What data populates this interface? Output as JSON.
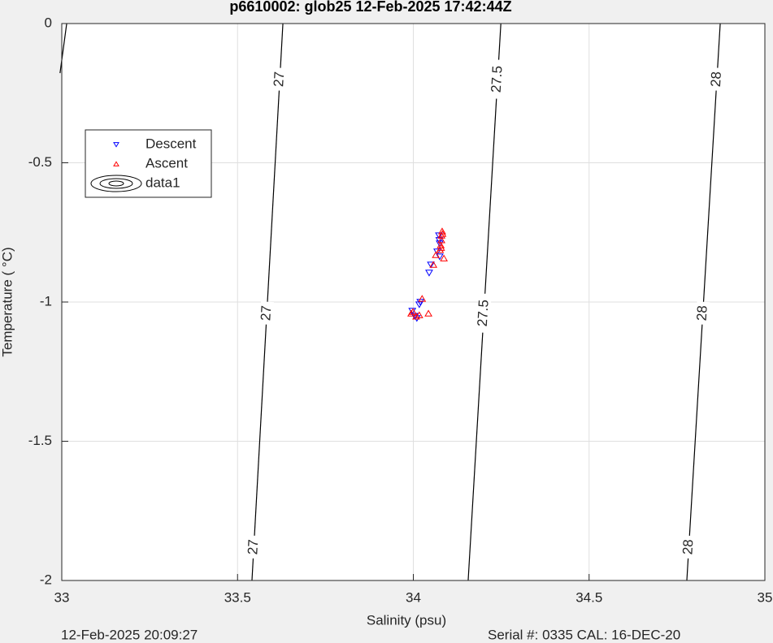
{
  "chart_data": {
    "type": "scatter",
    "title": "p6610002: glob25 12-Feb-2025 17:42:44Z",
    "x_label": "Salinity (psu)",
    "y_label": "Temperature (   °C)",
    "footer_left": "12-Feb-2025 20:09:27",
    "footer_right": "Serial #: 0335  CAL: 16-DEC-20",
    "xlim": [
      33,
      35
    ],
    "ylim": [
      -2,
      0
    ],
    "xticks": [
      33,
      33.5,
      34,
      34.5,
      35
    ],
    "yticks": [
      -2,
      -1.5,
      -1,
      -0.5,
      0
    ],
    "grid": true,
    "legend": "upper left",
    "series": [
      {
        "name": "Descent",
        "color": "#0000ff",
        "marker": "triangle-down",
        "x": [
          34.075,
          34.073,
          34.068,
          34.075,
          34.05,
          34.045,
          34.02,
          34.017,
          33.997,
          34.004,
          34.01,
          34.074
        ],
        "y": [
          -0.79,
          -0.761,
          -0.819,
          -0.837,
          -0.866,
          -0.895,
          -1.0,
          -1.009,
          -1.032,
          -1.05,
          -1.058,
          -0.778
        ]
      },
      {
        "name": "Ascent",
        "color": "#ff0000",
        "marker": "triangle-up",
        "x": [
          34.082,
          34.08,
          34.08,
          34.078,
          34.076,
          34.087,
          34.064,
          34.057,
          34.025,
          34.043,
          33.999,
          34.008,
          34.017,
          33.994,
          34.079,
          34.083
        ],
        "y": [
          -0.746,
          -0.761,
          -0.778,
          -0.796,
          -0.813,
          -0.843,
          -0.831,
          -0.866,
          -0.988,
          -1.041,
          -1.035,
          -1.052,
          -1.047,
          -1.041,
          -0.805,
          -0.755
        ]
      }
    ],
    "contours": {
      "name": "data1",
      "color": "#000000",
      "lines": [
        {
          "x": [
            33.014,
            32.995
          ],
          "y": [
            0,
            -0.178
          ]
        },
        {
          "level": 27,
          "x": [
            33.629,
            33.541
          ],
          "y": [
            0,
            -2
          ]
        },
        {
          "level": 27.5,
          "x": [
            34.249,
            34.156
          ],
          "y": [
            0,
            -2
          ]
        },
        {
          "level": 28,
          "x": [
            34.873,
            34.778
          ],
          "y": [
            0,
            -2
          ]
        }
      ]
    }
  }
}
